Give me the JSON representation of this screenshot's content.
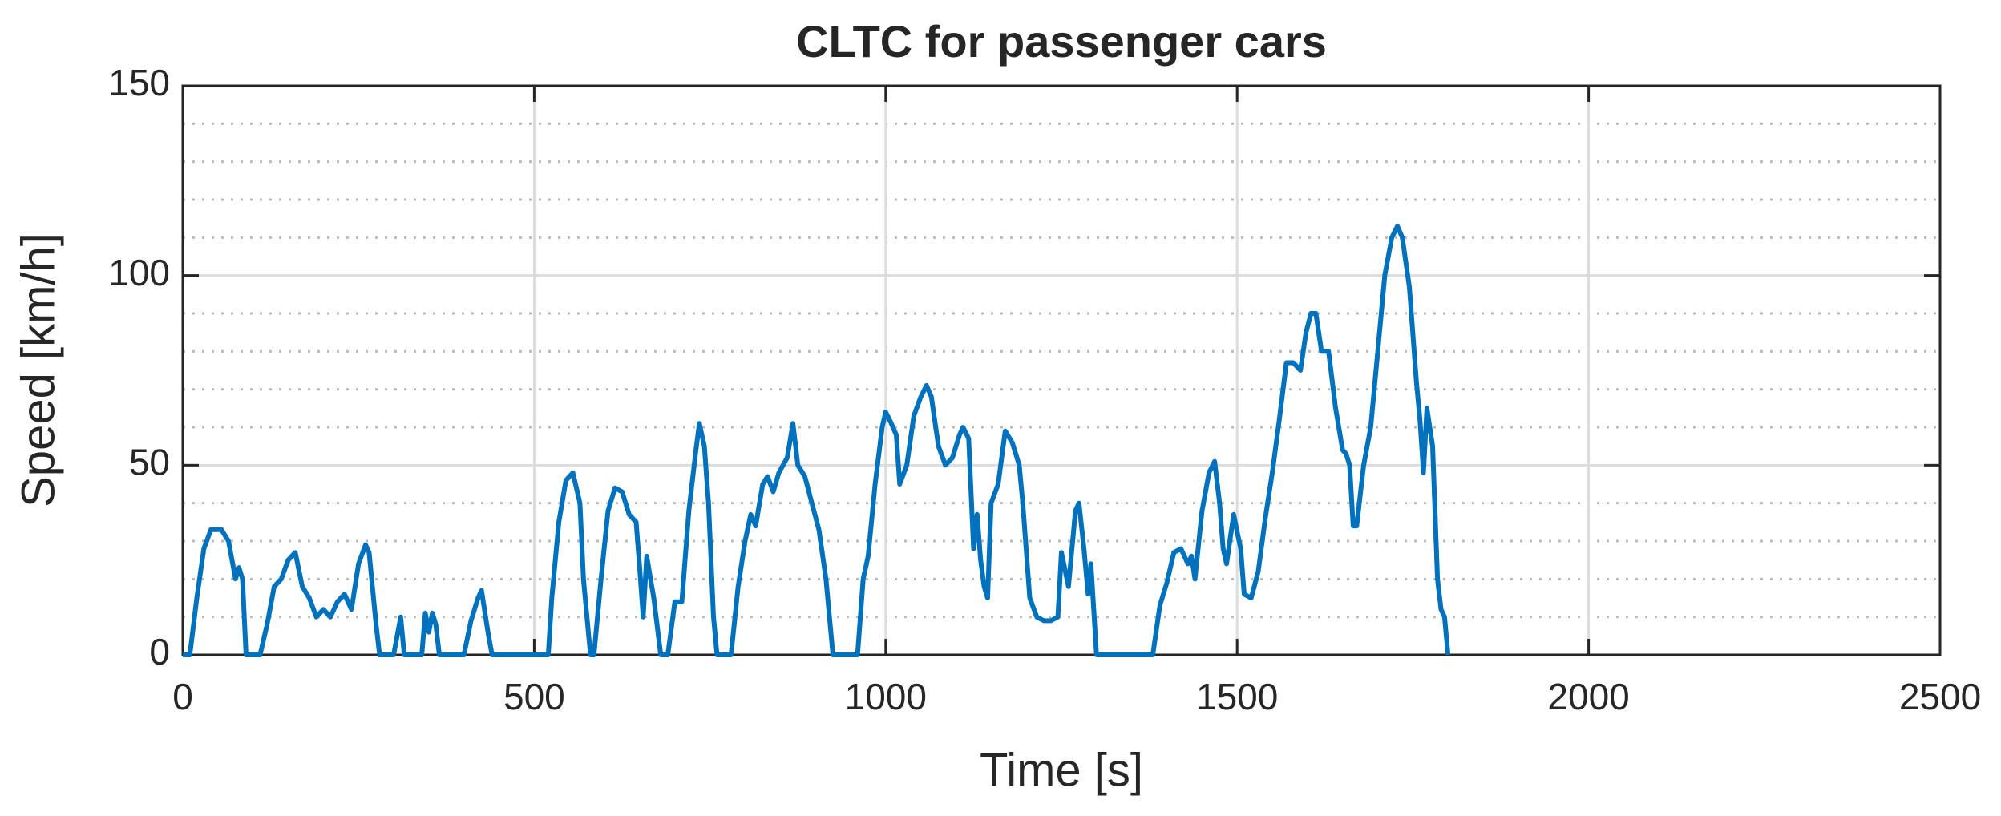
{
  "chart_data": {
    "type": "line",
    "title": "CLTC for passenger cars",
    "xlabel": "Time [s]",
    "ylabel": "Speed [km/h]",
    "xlim": [
      0,
      2500
    ],
    "xticks": [
      0,
      500,
      1000,
      1500,
      2000,
      2500
    ],
    "ylim": [
      0,
      150
    ],
    "yticks": [
      0,
      50,
      100,
      150
    ],
    "yminorticks": [
      10,
      20,
      30,
      40,
      60,
      70,
      80,
      90,
      110,
      120,
      130,
      140
    ],
    "grid": true,
    "minor_grid": true,
    "series": [
      {
        "color": "#0072BD",
        "x": [
          0,
          10,
          20,
          30,
          40,
          55,
          65,
          75,
          80,
          85,
          90,
          100,
          110,
          120,
          130,
          140,
          150,
          160,
          170,
          180,
          190,
          200,
          210,
          220,
          230,
          240,
          250,
          260,
          265,
          275,
          280,
          300,
          310,
          315,
          340,
          345,
          350,
          355,
          360,
          365,
          400,
          410,
          420,
          425,
          435,
          440,
          520,
          525,
          535,
          545,
          555,
          565,
          570,
          580,
          585,
          595,
          605,
          615,
          625,
          635,
          645,
          650,
          655,
          660,
          670,
          680,
          690,
          700,
          710,
          720,
          730,
          735,
          742,
          748,
          755,
          760,
          780,
          790,
          800,
          808,
          815,
          825,
          832,
          840,
          848,
          860,
          868,
          875,
          885,
          895,
          905,
          915,
          925,
          960,
          968,
          975,
          985,
          995,
          1000,
          1008,
          1015,
          1020,
          1030,
          1040,
          1050,
          1058,
          1065,
          1075,
          1085,
          1095,
          1105,
          1110,
          1118,
          1125,
          1130,
          1135,
          1140,
          1145,
          1150,
          1160,
          1170,
          1180,
          1190,
          1195,
          1205,
          1215,
          1225,
          1235,
          1245,
          1250,
          1260,
          1270,
          1275,
          1282,
          1288,
          1292,
          1300,
          1380,
          1390,
          1400,
          1410,
          1420,
          1430,
          1435,
          1440,
          1450,
          1460,
          1468,
          1475,
          1480,
          1485,
          1495,
          1505,
          1510,
          1520,
          1530,
          1540,
          1550,
          1560,
          1570,
          1580,
          1590,
          1598,
          1605,
          1612,
          1620,
          1630,
          1640,
          1650,
          1655,
          1660,
          1665,
          1670,
          1680,
          1690,
          1700,
          1710,
          1720,
          1728,
          1735,
          1745,
          1755,
          1760,
          1765,
          1770,
          1778,
          1785,
          1790,
          1795,
          1800
        ],
        "values": [
          0,
          0,
          15,
          28,
          33,
          33,
          30,
          20,
          23,
          20,
          0,
          0,
          0,
          8,
          18,
          20,
          25,
          27,
          18,
          15,
          10,
          12,
          10,
          14,
          16,
          12,
          24,
          29,
          27,
          8,
          0,
          0,
          10,
          0,
          0,
          11,
          6,
          11,
          8,
          0,
          0,
          9,
          15,
          17,
          5,
          0,
          0,
          15,
          35,
          46,
          48,
          40,
          20,
          0,
          0,
          20,
          38,
          44,
          43,
          37,
          35,
          23,
          10,
          26,
          15,
          0,
          0,
          14,
          14,
          38,
          54,
          61,
          55,
          40,
          10,
          0,
          0,
          18,
          30,
          37,
          34,
          45,
          47,
          43,
          48,
          52,
          61,
          50,
          47,
          40,
          33,
          20,
          0,
          0,
          20,
          26,
          45,
          60,
          64,
          61,
          58,
          45,
          50,
          63,
          68,
          71,
          68,
          55,
          50,
          52,
          58,
          60,
          57,
          28,
          37,
          25,
          18,
          15,
          40,
          45,
          59,
          56,
          50,
          40,
          15,
          10,
          9,
          9,
          10,
          27,
          18,
          38,
          40,
          28,
          16,
          24,
          0,
          0,
          13,
          19,
          27,
          28,
          24,
          26,
          20,
          38,
          48,
          51,
          40,
          28,
          24,
          37,
          28,
          16,
          15,
          22,
          36,
          48,
          62,
          77,
          77,
          75,
          85,
          90,
          90,
          80,
          80,
          65,
          54,
          53,
          50,
          34,
          34,
          50,
          60,
          80,
          100,
          110,
          113,
          110,
          97,
          72,
          62,
          48,
          65,
          55,
          20,
          12,
          10,
          0
        ]
      }
    ]
  }
}
